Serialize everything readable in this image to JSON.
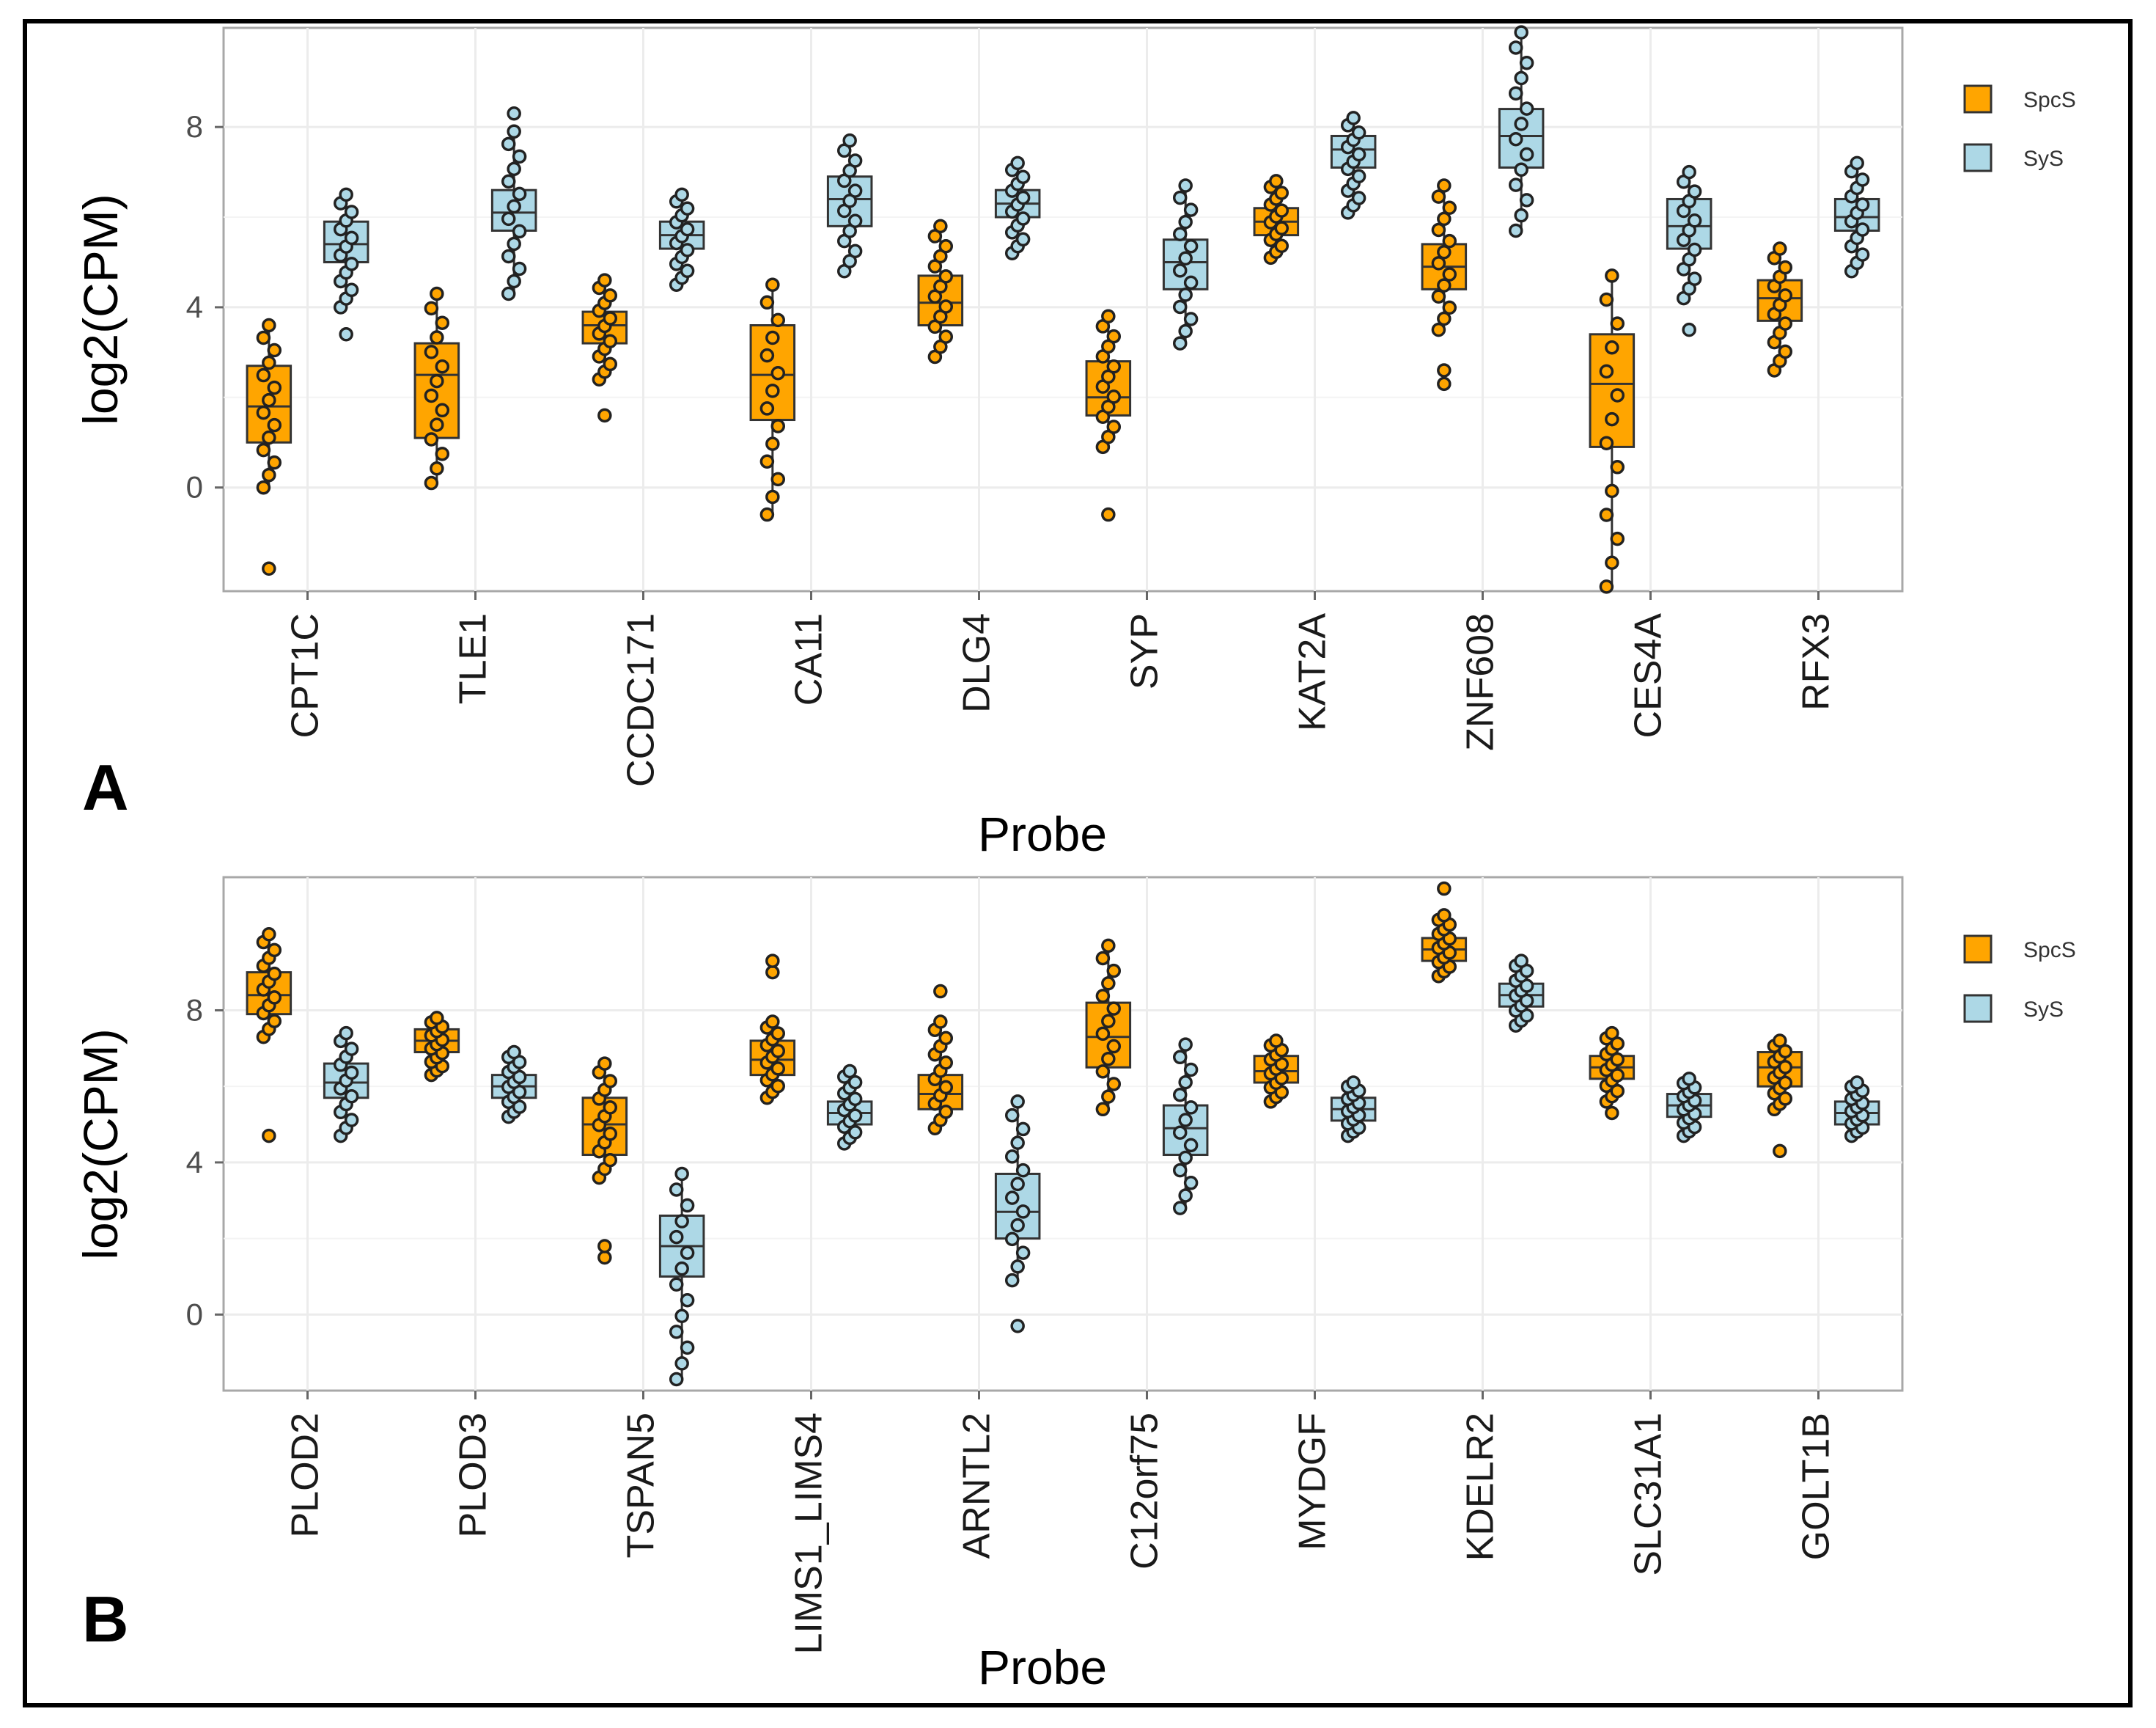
{
  "chart_data": [
    {
      "type": "box",
      "panel_label": "A",
      "xlabel": "Probe",
      "ylabel": "log2(CPM)",
      "ylim": [
        -2.3,
        10.2
      ],
      "yticks": [
        0,
        4,
        8
      ],
      "grid": true,
      "legend_position": "right",
      "series": [
        {
          "name": "SpcS",
          "color": "#ffa500"
        },
        {
          "name": "SyS",
          "color": "#add8e6"
        }
      ],
      "categories": [
        "CPT1C",
        "TLE1",
        "CCDC171",
        "CA11",
        "DLG4",
        "SYP",
        "KAT2A",
        "ZNF608",
        "CES4A",
        "RFX3"
      ],
      "boxes": [
        {
          "category": "CPT1C",
          "series": "SpcS",
          "whisker_low": 0.0,
          "q1": 1.0,
          "median": 1.8,
          "q3": 2.7,
          "whisker_high": 3.6,
          "outliers": [
            -1.8
          ]
        },
        {
          "category": "CPT1C",
          "series": "SyS",
          "whisker_low": 4.0,
          "q1": 5.0,
          "median": 5.4,
          "q3": 5.9,
          "whisker_high": 6.5,
          "outliers": [
            3.4
          ]
        },
        {
          "category": "TLE1",
          "series": "SpcS",
          "whisker_low": 0.1,
          "q1": 1.1,
          "median": 2.5,
          "q3": 3.2,
          "whisker_high": 4.3,
          "outliers": []
        },
        {
          "category": "TLE1",
          "series": "SyS",
          "whisker_low": 4.3,
          "q1": 5.7,
          "median": 6.1,
          "q3": 6.6,
          "whisker_high": 7.9,
          "outliers": [
            8.3
          ]
        },
        {
          "category": "CCDC171",
          "series": "SpcS",
          "whisker_low": 2.4,
          "q1": 3.2,
          "median": 3.6,
          "q3": 3.9,
          "whisker_high": 4.6,
          "outliers": [
            1.6
          ]
        },
        {
          "category": "CCDC171",
          "series": "SyS",
          "whisker_low": 4.5,
          "q1": 5.3,
          "median": 5.6,
          "q3": 5.9,
          "whisker_high": 6.5,
          "outliers": []
        },
        {
          "category": "CA11",
          "series": "SpcS",
          "whisker_low": -0.6,
          "q1": 1.5,
          "median": 2.5,
          "q3": 3.6,
          "whisker_high": 4.5,
          "outliers": []
        },
        {
          "category": "CA11",
          "series": "SyS",
          "whisker_low": 4.8,
          "q1": 5.8,
          "median": 6.4,
          "q3": 6.9,
          "whisker_high": 7.7,
          "outliers": []
        },
        {
          "category": "DLG4",
          "series": "SpcS",
          "whisker_low": 2.9,
          "q1": 3.6,
          "median": 4.1,
          "q3": 4.7,
          "whisker_high": 5.8,
          "outliers": []
        },
        {
          "category": "DLG4",
          "series": "SyS",
          "whisker_low": 5.2,
          "q1": 6.0,
          "median": 6.3,
          "q3": 6.6,
          "whisker_high": 7.2,
          "outliers": []
        },
        {
          "category": "SYP",
          "series": "SpcS",
          "whisker_low": 0.9,
          "q1": 1.6,
          "median": 2.0,
          "q3": 2.8,
          "whisker_high": 3.8,
          "outliers": [
            -0.6
          ]
        },
        {
          "category": "SYP",
          "series": "SyS",
          "whisker_low": 3.2,
          "q1": 4.4,
          "median": 5.0,
          "q3": 5.5,
          "whisker_high": 6.7,
          "outliers": []
        },
        {
          "category": "KAT2A",
          "series": "SpcS",
          "whisker_low": 5.1,
          "q1": 5.6,
          "median": 5.9,
          "q3": 6.2,
          "whisker_high": 6.8,
          "outliers": []
        },
        {
          "category": "KAT2A",
          "series": "SyS",
          "whisker_low": 6.1,
          "q1": 7.1,
          "median": 7.5,
          "q3": 7.8,
          "whisker_high": 8.2,
          "outliers": []
        },
        {
          "category": "ZNF608",
          "series": "SpcS",
          "whisker_low": 3.5,
          "q1": 4.4,
          "median": 4.9,
          "q3": 5.4,
          "whisker_high": 6.7,
          "outliers": [
            2.3,
            2.6
          ]
        },
        {
          "category": "ZNF608",
          "series": "SyS",
          "whisker_low": 5.7,
          "q1": 7.1,
          "median": 7.8,
          "q3": 8.4,
          "whisker_high": 10.1,
          "outliers": []
        },
        {
          "category": "CES4A",
          "series": "SpcS",
          "whisker_low": -2.2,
          "q1": 0.9,
          "median": 2.3,
          "q3": 3.4,
          "whisker_high": 4.7,
          "outliers": []
        },
        {
          "category": "CES4A",
          "series": "SyS",
          "whisker_low": 4.2,
          "q1": 5.3,
          "median": 5.8,
          "q3": 6.4,
          "whisker_high": 7.0,
          "outliers": [
            3.5
          ]
        },
        {
          "category": "RFX3",
          "series": "SpcS",
          "whisker_low": 2.6,
          "q1": 3.7,
          "median": 4.2,
          "q3": 4.6,
          "whisker_high": 5.3,
          "outliers": []
        },
        {
          "category": "RFX3",
          "series": "SyS",
          "whisker_low": 4.8,
          "q1": 5.7,
          "median": 6.0,
          "q3": 6.4,
          "whisker_high": 7.2,
          "outliers": []
        }
      ]
    },
    {
      "type": "box",
      "panel_label": "B",
      "xlabel": "Probe",
      "ylabel": "log2(CPM)",
      "ylim": [
        -2.0,
        11.5
      ],
      "yticks": [
        0,
        4,
        8
      ],
      "grid": true,
      "legend_position": "right",
      "series": [
        {
          "name": "SpcS",
          "color": "#ffa500"
        },
        {
          "name": "SyS",
          "color": "#add8e6"
        }
      ],
      "categories": [
        "PLOD2",
        "PLOD3",
        "TSPAN5",
        "LIMS1_LIMS4",
        "ARNTL2",
        "C12orf75",
        "MYDGF",
        "KDELR2",
        "SLC31A1",
        "GOLT1B"
      ],
      "boxes": [
        {
          "category": "PLOD2",
          "series": "SpcS",
          "whisker_low": 7.3,
          "q1": 7.9,
          "median": 8.4,
          "q3": 9.0,
          "whisker_high": 10.0,
          "outliers": [
            4.7
          ]
        },
        {
          "category": "PLOD2",
          "series": "SyS",
          "whisker_low": 4.7,
          "q1": 5.7,
          "median": 6.1,
          "q3": 6.6,
          "whisker_high": 7.4,
          "outliers": []
        },
        {
          "category": "PLOD3",
          "series": "SpcS",
          "whisker_low": 6.3,
          "q1": 6.9,
          "median": 7.2,
          "q3": 7.5,
          "whisker_high": 7.8,
          "outliers": []
        },
        {
          "category": "PLOD3",
          "series": "SyS",
          "whisker_low": 5.2,
          "q1": 5.7,
          "median": 6.0,
          "q3": 6.3,
          "whisker_high": 6.9,
          "outliers": []
        },
        {
          "category": "TSPAN5",
          "series": "SpcS",
          "whisker_low": 3.6,
          "q1": 4.2,
          "median": 5.0,
          "q3": 5.7,
          "whisker_high": 6.6,
          "outliers": [
            1.5,
            1.8
          ]
        },
        {
          "category": "TSPAN5",
          "series": "SyS",
          "whisker_low": -1.7,
          "q1": 1.0,
          "median": 1.8,
          "q3": 2.6,
          "whisker_high": 3.7,
          "outliers": []
        },
        {
          "category": "LIMS1_LIMS4",
          "series": "SpcS",
          "whisker_low": 5.7,
          "q1": 6.3,
          "median": 6.7,
          "q3": 7.2,
          "whisker_high": 7.7,
          "outliers": [
            9.0,
            9.3
          ]
        },
        {
          "category": "LIMS1_LIMS4",
          "series": "SyS",
          "whisker_low": 4.5,
          "q1": 5.0,
          "median": 5.3,
          "q3": 5.6,
          "whisker_high": 6.4,
          "outliers": []
        },
        {
          "category": "ARNTL2",
          "series": "SpcS",
          "whisker_low": 4.9,
          "q1": 5.4,
          "median": 5.8,
          "q3": 6.3,
          "whisker_high": 7.7,
          "outliers": [
            8.5
          ]
        },
        {
          "category": "ARNTL2",
          "series": "SyS",
          "whisker_low": 0.9,
          "q1": 2.0,
          "median": 2.7,
          "q3": 3.7,
          "whisker_high": 5.6,
          "outliers": [
            -0.3
          ]
        },
        {
          "category": "C12orf75",
          "series": "SpcS",
          "whisker_low": 5.4,
          "q1": 6.5,
          "median": 7.3,
          "q3": 8.2,
          "whisker_high": 9.7,
          "outliers": []
        },
        {
          "category": "C12orf75",
          "series": "SyS",
          "whisker_low": 2.8,
          "q1": 4.2,
          "median": 4.9,
          "q3": 5.5,
          "whisker_high": 7.1,
          "outliers": []
        },
        {
          "category": "MYDGF",
          "series": "SpcS",
          "whisker_low": 5.6,
          "q1": 6.1,
          "median": 6.4,
          "q3": 6.8,
          "whisker_high": 7.2,
          "outliers": []
        },
        {
          "category": "MYDGF",
          "series": "SyS",
          "whisker_low": 4.7,
          "q1": 5.1,
          "median": 5.4,
          "q3": 5.7,
          "whisker_high": 6.1,
          "outliers": []
        },
        {
          "category": "KDELR2",
          "series": "SpcS",
          "whisker_low": 8.9,
          "q1": 9.3,
          "median": 9.6,
          "q3": 9.9,
          "whisker_high": 10.5,
          "outliers": [
            11.2
          ]
        },
        {
          "category": "KDELR2",
          "series": "SyS",
          "whisker_low": 7.6,
          "q1": 8.1,
          "median": 8.4,
          "q3": 8.7,
          "whisker_high": 9.3,
          "outliers": []
        },
        {
          "category": "SLC31A1",
          "series": "SpcS",
          "whisker_low": 5.6,
          "q1": 6.2,
          "median": 6.5,
          "q3": 6.8,
          "whisker_high": 7.4,
          "outliers": [
            5.3
          ]
        },
        {
          "category": "SLC31A1",
          "series": "SyS",
          "whisker_low": 4.7,
          "q1": 5.2,
          "median": 5.5,
          "q3": 5.8,
          "whisker_high": 6.2,
          "outliers": []
        },
        {
          "category": "GOLT1B",
          "series": "SpcS",
          "whisker_low": 5.4,
          "q1": 6.0,
          "median": 6.5,
          "q3": 6.9,
          "whisker_high": 7.2,
          "outliers": [
            4.3
          ]
        },
        {
          "category": "GOLT1B",
          "series": "SyS",
          "whisker_low": 4.7,
          "q1": 5.0,
          "median": 5.3,
          "q3": 5.6,
          "whisker_high": 6.1,
          "outliers": []
        }
      ]
    }
  ]
}
